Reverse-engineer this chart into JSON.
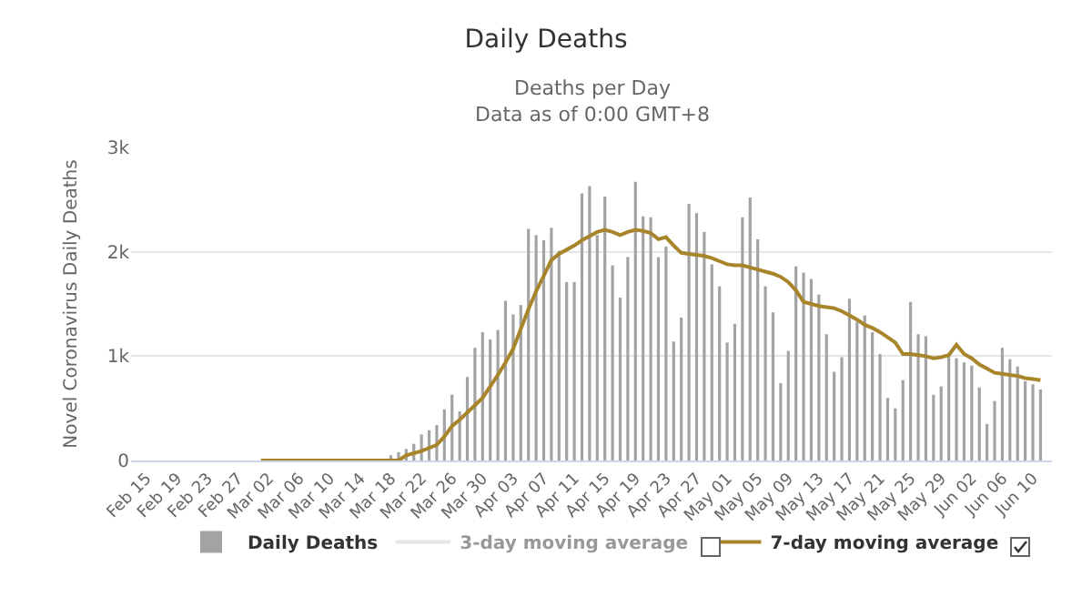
{
  "chart_data": {
    "type": "bar",
    "title": "Daily Deaths",
    "subtitle": "Deaths per Day\nData as of 0:00 GMT+8",
    "ylabel": "Novel Coronavirus Daily Deaths",
    "categories": [
      "Feb 15",
      null,
      null,
      null,
      "Feb 19",
      null,
      null,
      null,
      "Feb 23",
      null,
      null,
      null,
      "Feb 27",
      null,
      null,
      null,
      "Mar 02",
      null,
      null,
      null,
      "Mar 06",
      null,
      null,
      null,
      "Mar 10",
      null,
      null,
      null,
      "Mar 14",
      null,
      null,
      null,
      "Mar 18",
      null,
      null,
      null,
      "Mar 22",
      null,
      null,
      null,
      "Mar 26",
      null,
      null,
      null,
      "Mar 30",
      null,
      null,
      null,
      "Apr 03",
      null,
      null,
      null,
      "Apr 07",
      null,
      null,
      null,
      "Apr 11",
      null,
      null,
      null,
      "Apr 15",
      null,
      null,
      null,
      "Apr 19",
      null,
      null,
      null,
      "Apr 23",
      null,
      null,
      null,
      "Apr 27",
      null,
      null,
      null,
      "May 01",
      null,
      null,
      null,
      "May 05",
      null,
      null,
      null,
      "May 09",
      null,
      null,
      null,
      "May 13",
      null,
      null,
      null,
      "May 17",
      null,
      null,
      null,
      "May 21",
      null,
      null,
      null,
      "May 25",
      null,
      null,
      null,
      "May 29",
      null,
      null,
      null,
      "Jun 02",
      null,
      null,
      null,
      "Jun 06",
      null,
      null,
      null,
      "Jun 10",
      null
    ],
    "series": [
      {
        "name": "Daily Deaths",
        "color": "#a3a3a3",
        "values": [
          null,
          null,
          null,
          null,
          null,
          null,
          null,
          null,
          null,
          null,
          null,
          null,
          null,
          null,
          null,
          null,
          null,
          null,
          null,
          null,
          null,
          null,
          null,
          null,
          null,
          null,
          null,
          null,
          null,
          null,
          null,
          null,
          50,
          80,
          110,
          160,
          250,
          290,
          340,
          490,
          630,
          470,
          800,
          1080,
          1230,
          1160,
          1250,
          1530,
          1400,
          1490,
          2220,
          2160,
          2110,
          2230,
          2010,
          1710,
          1710,
          2560,
          2630,
          2160,
          2530,
          1870,
          1560,
          1950,
          2670,
          2340,
          2330,
          1950,
          2050,
          1140,
          1370,
          2460,
          2370,
          2190,
          1880,
          1670,
          1130,
          1310,
          2330,
          2520,
          2120,
          1670,
          1420,
          740,
          1050,
          1860,
          1800,
          1740,
          1590,
          1210,
          850,
          990,
          1550,
          1330,
          1390,
          1230,
          1020,
          600,
          500,
          770,
          1520,
          1210,
          1190,
          630,
          710,
          1010,
          980,
          940,
          910,
          700,
          350,
          570,
          1080,
          970,
          900,
          760,
          730,
          680
        ]
      },
      {
        "name": "3-day moving average",
        "type": "line",
        "color": "#cccccc",
        "values": [
          null,
          null,
          null,
          null,
          null,
          null,
          null,
          null,
          null,
          null,
          null,
          null,
          null,
          null,
          null,
          null,
          null,
          null,
          null,
          null,
          null,
          null,
          null,
          null,
          null,
          null,
          null,
          null,
          null,
          null,
          null,
          null,
          null,
          null,
          null,
          null,
          null,
          null,
          null,
          null,
          null,
          null,
          null,
          null,
          null,
          null,
          null,
          null,
          null,
          null,
          null,
          null,
          null,
          null,
          null,
          null,
          null,
          null,
          null,
          null,
          null,
          null,
          null,
          null,
          null,
          null,
          null,
          null,
          null,
          null,
          null,
          null,
          null,
          null,
          null,
          null,
          null,
          null,
          null,
          null,
          null,
          null,
          null,
          null,
          null,
          null,
          null,
          null,
          null,
          null,
          null,
          null,
          null,
          null,
          null,
          null,
          null,
          null,
          null,
          null,
          null,
          null,
          null,
          null,
          null,
          null,
          null,
          null,
          null,
          null,
          null,
          null,
          null,
          null,
          null,
          null,
          null,
          null
        ]
      },
      {
        "name": "7-day moving average",
        "type": "line",
        "color": "#a8842a",
        "values": [
          null,
          null,
          null,
          null,
          null,
          null,
          null,
          null,
          null,
          null,
          null,
          null,
          null,
          null,
          null,
          0,
          0,
          0,
          0,
          0,
          0,
          0,
          0,
          0,
          0,
          0,
          0,
          0,
          0,
          0,
          0,
          0,
          0,
          0,
          50,
          70,
          90,
          120,
          150,
          230,
          330,
          390,
          460,
          530,
          600,
          710,
          820,
          940,
          1070,
          1260,
          1450,
          1620,
          1770,
          1920,
          1980,
          2020,
          2060,
          2110,
          2150,
          2190,
          2210,
          2190,
          2160,
          2190,
          2210,
          2200,
          2180,
          2120,
          2140,
          2060,
          1990,
          1980,
          1970,
          1960,
          1940,
          1910,
          1880,
          1870,
          1870,
          1850,
          1830,
          1810,
          1790,
          1760,
          1710,
          1630,
          1520,
          1500,
          1480,
          1470,
          1460,
          1430,
          1390,
          1350,
          1300,
          1270,
          1230,
          1180,
          1130,
          1020,
          1020,
          1010,
          1000,
          980,
          990,
          1010,
          1110,
          1020,
          980,
          920,
          880,
          840,
          830,
          820,
          810,
          790,
          780,
          770
        ]
      }
    ],
    "ylim": [
      0,
      3000
    ],
    "yticks": [
      0,
      {
        "value": 1000,
        "label": "1k"
      },
      {
        "value": 2000,
        "label": "2k"
      },
      {
        "value": 3000,
        "label": "3k"
      }
    ],
    "grid": "y",
    "legend": "bottom"
  }
}
